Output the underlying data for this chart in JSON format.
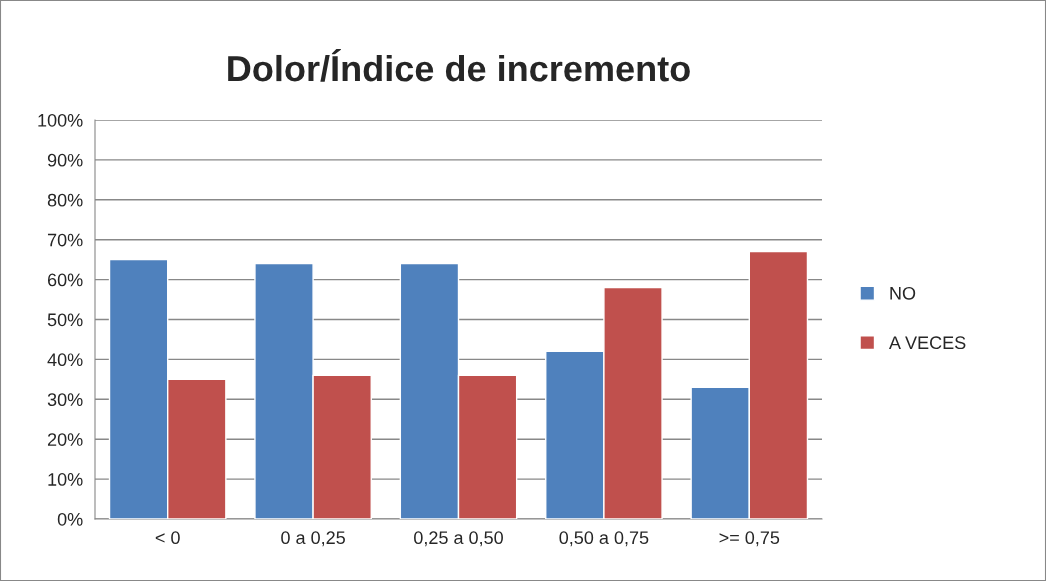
{
  "chart_data": {
    "type": "bar",
    "title": "Dolor/Índice de incremento",
    "categories": [
      "< 0",
      "0 a 0,25",
      "0,25 a 0,50",
      "0,50 a 0,75",
      ">= 0,75"
    ],
    "series": [
      {
        "name": "NO",
        "color": "#4f81bd",
        "values": [
          65,
          64,
          64,
          42,
          33
        ]
      },
      {
        "name": "A VECES",
        "color": "#c0504d",
        "values": [
          35,
          36,
          36,
          58,
          67
        ]
      }
    ],
    "ylim": [
      0,
      100
    ],
    "yticks": [
      {
        "value": 0,
        "label": "0%"
      },
      {
        "value": 10,
        "label": "10%"
      },
      {
        "value": 20,
        "label": "20%"
      },
      {
        "value": 30,
        "label": "30%"
      },
      {
        "value": 40,
        "label": "40%"
      },
      {
        "value": 50,
        "label": "50%"
      },
      {
        "value": 60,
        "label": "60%"
      },
      {
        "value": 70,
        "label": "70%"
      },
      {
        "value": 80,
        "label": "80%"
      },
      {
        "value": 90,
        "label": "90%"
      },
      {
        "value": 100,
        "label": "100%"
      }
    ],
    "grid": "y",
    "legend": "right"
  }
}
